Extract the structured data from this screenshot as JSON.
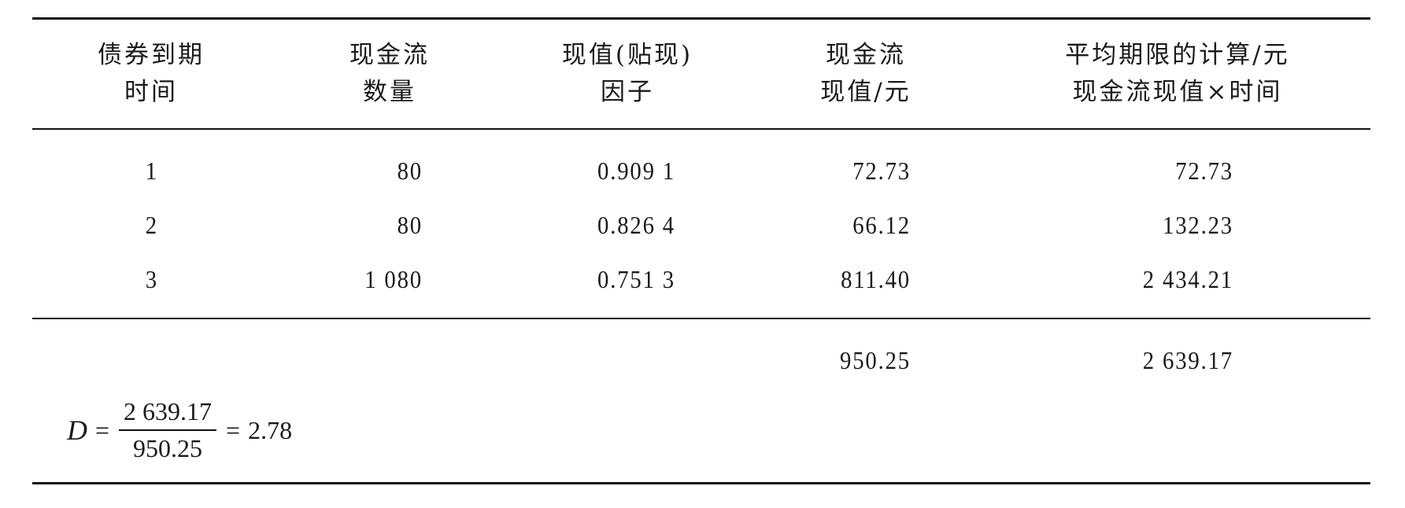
{
  "table": {
    "headers": [
      {
        "line1": "债券到期",
        "line2": "时间"
      },
      {
        "line1": "现金流",
        "line2": "数量"
      },
      {
        "line1": "现值(贴现)",
        "line2": "因子"
      },
      {
        "line1": "现金流",
        "line2": "现值/元"
      },
      {
        "line1": "平均期限的计算/元",
        "line2": "现金流现值×时间"
      }
    ],
    "rows": [
      [
        "1",
        "80",
        "0.909 1",
        "72.73",
        "72.73"
      ],
      [
        "2",
        "80",
        "0.826 4",
        "66.12",
        "132.23"
      ],
      [
        "3",
        "1 080",
        "0.751 3",
        "811.40",
        "2 434.21"
      ]
    ],
    "totals": {
      "pv": "950.25",
      "weighted": "2 639.17"
    },
    "formula": {
      "lhs": "D",
      "eq": "=",
      "numerator": "2 639.17",
      "denominator": "950.25",
      "result": "2.78"
    }
  }
}
